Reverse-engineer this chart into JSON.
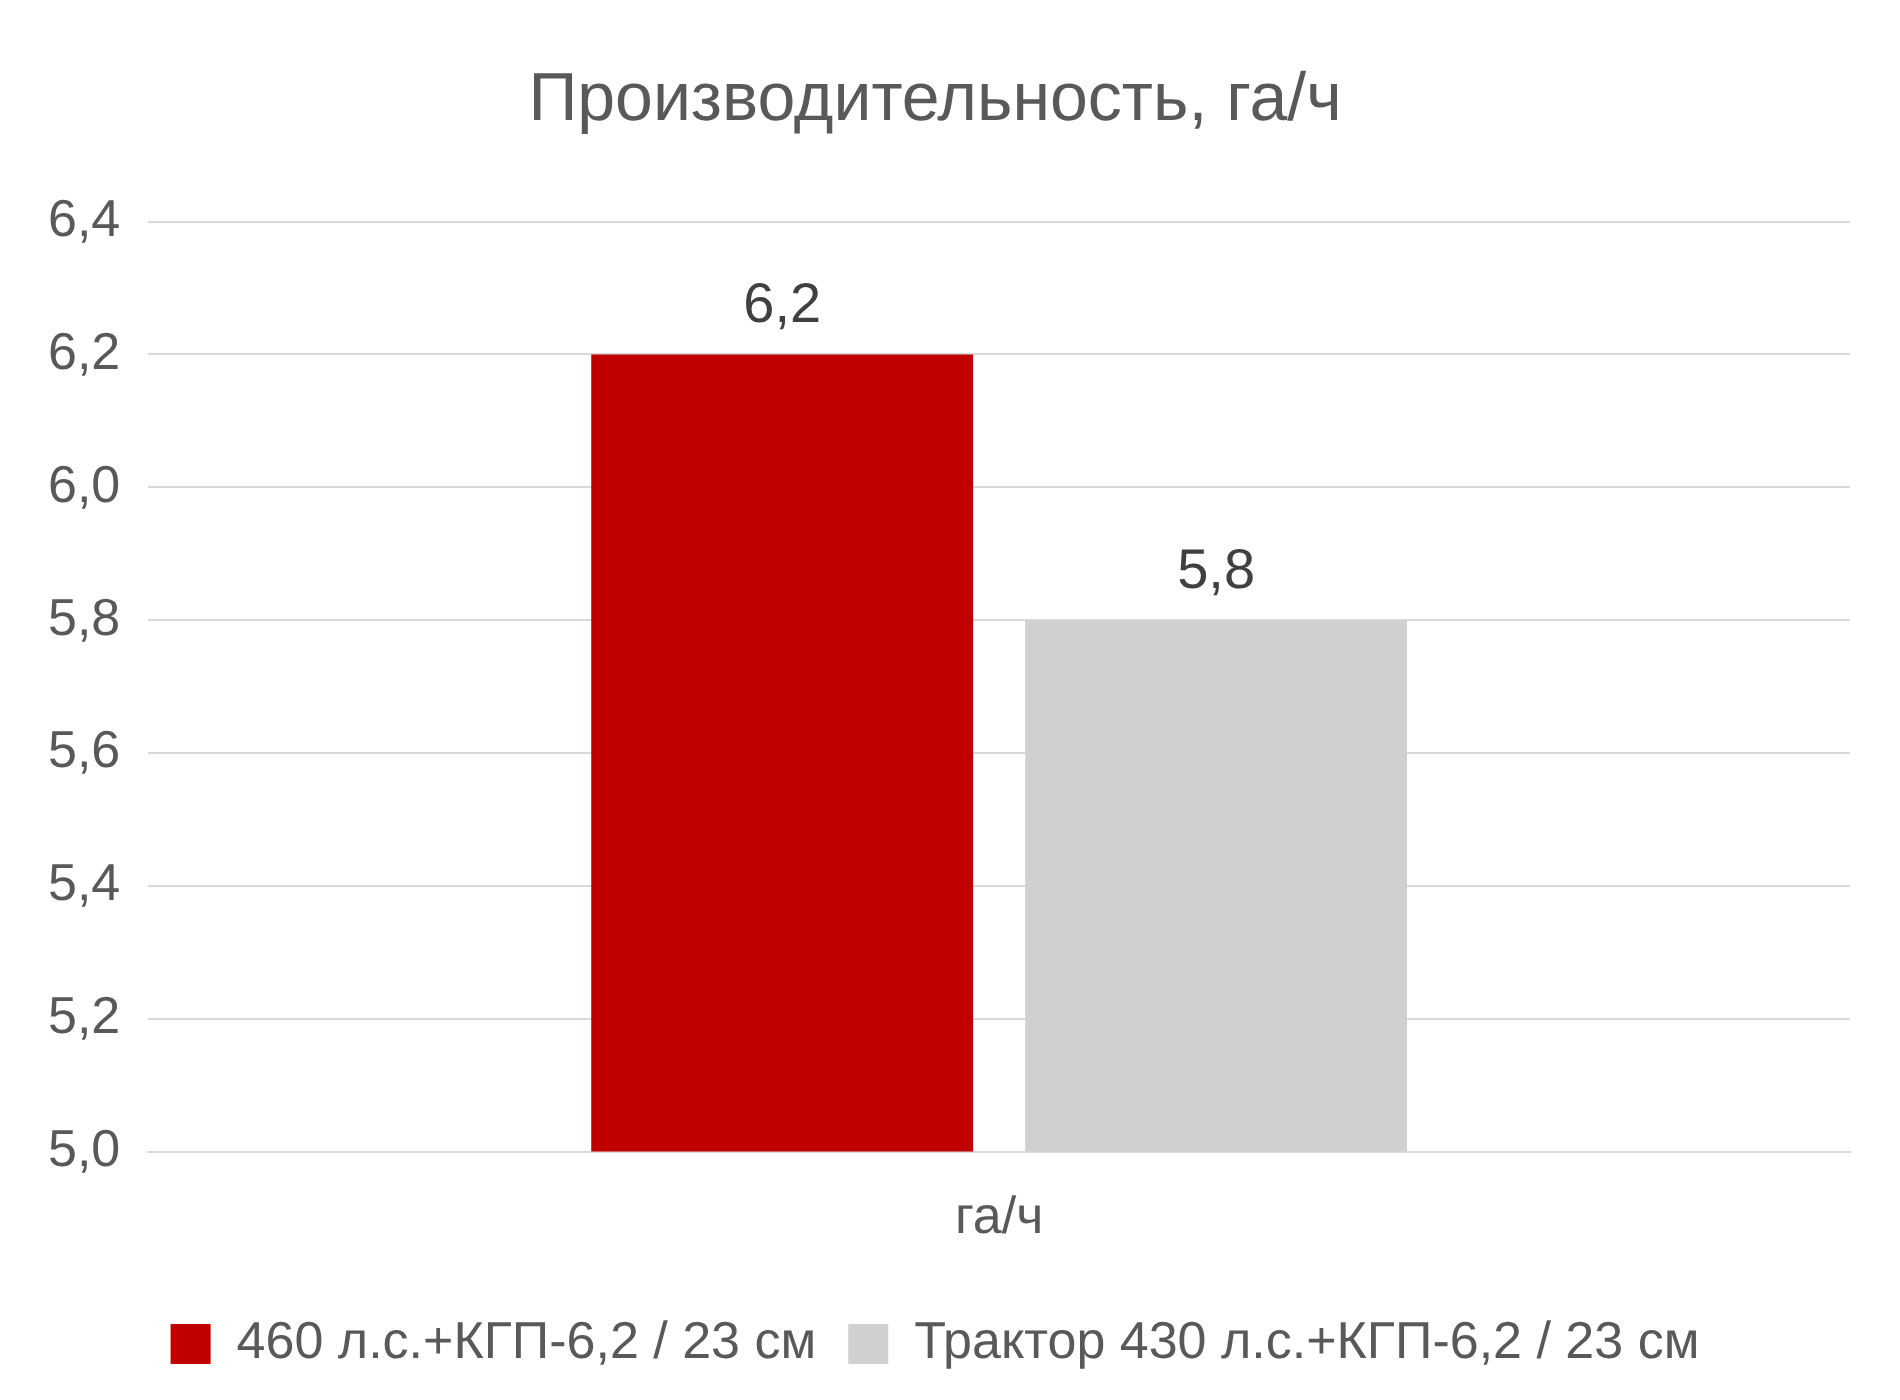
{
  "chart_data": {
    "type": "bar",
    "title": "Производительность, га/ч",
    "categories": [
      "га/ч"
    ],
    "series": [
      {
        "name": "460 л.с.+КГП-6,2 / 23 см",
        "color": "#c00000",
        "values": [
          6.2
        ],
        "value_labels": [
          "6,2"
        ]
      },
      {
        "name": "Трактор 430 л.с.+КГП-6,2 / 23 см",
        "color": "#d0d0d0",
        "values": [
          5.8
        ],
        "value_labels": [
          "5,8"
        ]
      }
    ],
    "ylim": [
      5,
      6.4
    ],
    "yticks": [
      {
        "value": 5,
        "label": "5,0"
      },
      {
        "value": 5.2,
        "label": "5,2"
      },
      {
        "value": 5.4,
        "label": "5,4"
      },
      {
        "value": 5.6,
        "label": "5,6"
      },
      {
        "value": 5.8,
        "label": "5,8"
      },
      {
        "value": 6,
        "label": "6,0"
      },
      {
        "value": 6.2,
        "label": "6,2"
      },
      {
        "value": 6.4,
        "label": "6,4"
      }
    ],
    "grid": "y",
    "legend": "bottom"
  }
}
